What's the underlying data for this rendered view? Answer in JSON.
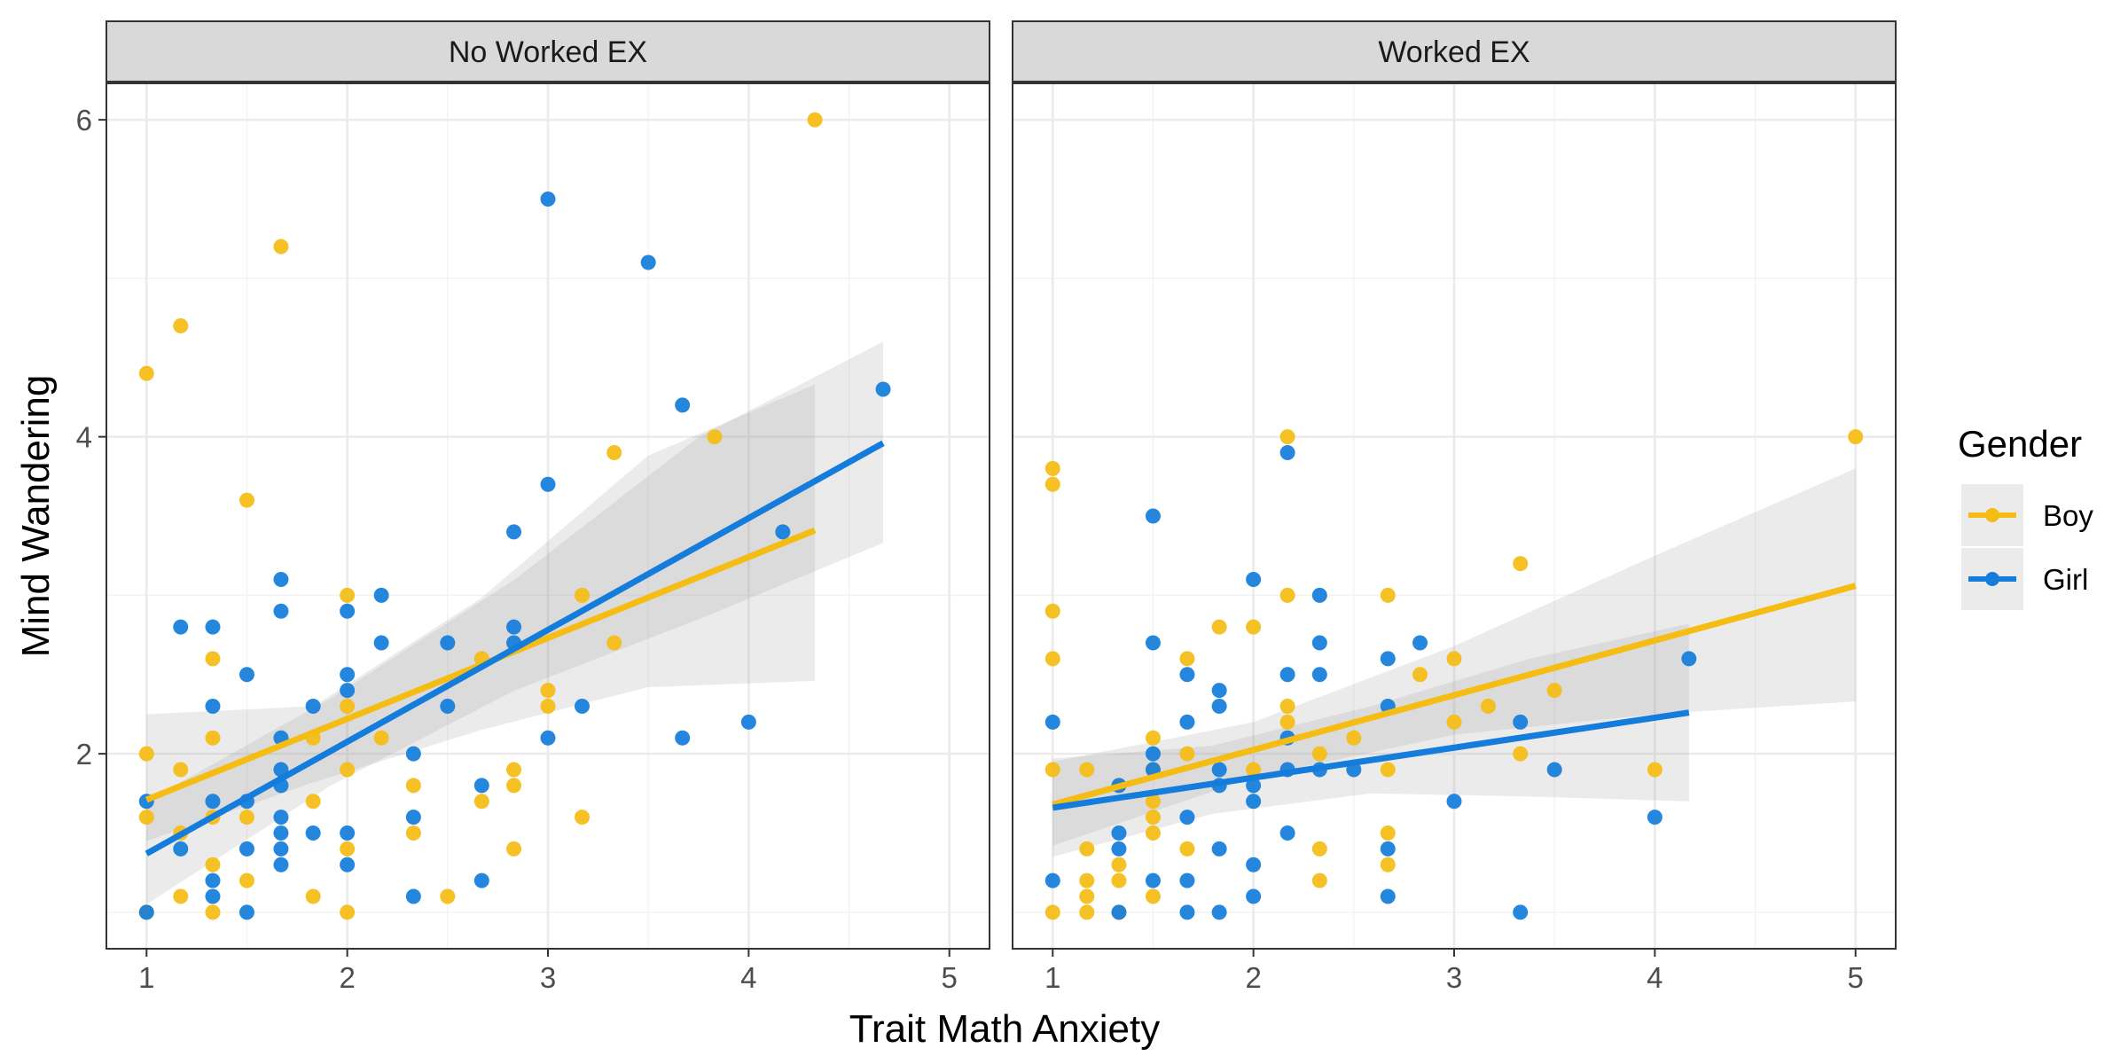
{
  "colors": {
    "boy": "#F5BC14",
    "girl": "#147DDC",
    "band": "#999999"
  },
  "chart_data": {
    "type": "scatter",
    "xlabel": "Trait Math Anxiety",
    "ylabel": "Mind Wandering",
    "xlim": [
      0.8,
      5.2
    ],
    "ylim": [
      0.77,
      6.23
    ],
    "x_ticks": [
      1,
      2,
      3,
      4,
      5
    ],
    "y_ticks": [
      2,
      4,
      6
    ],
    "grid": true,
    "legend": {
      "title": "Gender",
      "placement": "right",
      "entries": [
        {
          "label": "Boy",
          "series": "boy"
        },
        {
          "label": "Girl",
          "series": "girl"
        }
      ]
    },
    "panels": [
      {
        "strip": "No Worked EX",
        "points": {
          "boy": [
            [
              1,
              4.4
            ],
            [
              1,
              2.0
            ],
            [
              1,
              1.6
            ],
            [
              1,
              1.0
            ],
            [
              1.17,
              4.7
            ],
            [
              1.17,
              1.9
            ],
            [
              1.17,
              1.5
            ],
            [
              1.17,
              1.1
            ],
            [
              1.33,
              2.6
            ],
            [
              1.33,
              2.1
            ],
            [
              1.33,
              1.6
            ],
            [
              1.33,
              1.3
            ],
            [
              1.33,
              1.0
            ],
            [
              1.5,
              3.6
            ],
            [
              1.5,
              1.6
            ],
            [
              1.5,
              1.2
            ],
            [
              1.67,
              5.2
            ],
            [
              1.83,
              2.1
            ],
            [
              1.83,
              1.7
            ],
            [
              1.83,
              1.1
            ],
            [
              2,
              3.0
            ],
            [
              2,
              2.3
            ],
            [
              2,
              1.9
            ],
            [
              2,
              1.4
            ],
            [
              2,
              1.0
            ],
            [
              2.17,
              2.1
            ],
            [
              2.33,
              1.8
            ],
            [
              2.33,
              1.5
            ],
            [
              2.5,
              1.1
            ],
            [
              2.67,
              2.6
            ],
            [
              2.67,
              1.7
            ],
            [
              2.83,
              1.9
            ],
            [
              2.83,
              1.8
            ],
            [
              2.83,
              1.4
            ],
            [
              3,
              2.4
            ],
            [
              3,
              2.3
            ],
            [
              3.17,
              3.0
            ],
            [
              3.17,
              1.6
            ],
            [
              3.33,
              3.9
            ],
            [
              3.33,
              2.7
            ],
            [
              3.83,
              4.0
            ],
            [
              4.33,
              6.0
            ]
          ],
          "girl": [
            [
              1,
              1.7
            ],
            [
              1,
              1.0
            ],
            [
              1.17,
              2.8
            ],
            [
              1.17,
              1.4
            ],
            [
              1.33,
              2.8
            ],
            [
              1.33,
              2.3
            ],
            [
              1.33,
              1.7
            ],
            [
              1.33,
              1.2
            ],
            [
              1.33,
              1.1
            ],
            [
              1.5,
              2.5
            ],
            [
              1.5,
              1.7
            ],
            [
              1.5,
              1.4
            ],
            [
              1.5,
              1.0
            ],
            [
              1.67,
              3.1
            ],
            [
              1.67,
              2.9
            ],
            [
              1.67,
              2.1
            ],
            [
              1.67,
              1.9
            ],
            [
              1.67,
              1.8
            ],
            [
              1.67,
              1.6
            ],
            [
              1.67,
              1.5
            ],
            [
              1.67,
              1.4
            ],
            [
              1.67,
              1.3
            ],
            [
              1.83,
              2.3
            ],
            [
              1.83,
              1.5
            ],
            [
              2,
              2.9
            ],
            [
              2,
              2.5
            ],
            [
              2,
              2.4
            ],
            [
              2,
              1.5
            ],
            [
              2,
              1.3
            ],
            [
              2.17,
              3.0
            ],
            [
              2.17,
              2.7
            ],
            [
              2.33,
              2.0
            ],
            [
              2.33,
              1.6
            ],
            [
              2.33,
              1.1
            ],
            [
              2.5,
              2.7
            ],
            [
              2.5,
              2.3
            ],
            [
              2.67,
              1.8
            ],
            [
              2.67,
              1.2
            ],
            [
              2.83,
              3.4
            ],
            [
              2.83,
              2.8
            ],
            [
              2.83,
              2.7
            ],
            [
              3,
              5.5
            ],
            [
              3,
              3.7
            ],
            [
              3,
              2.1
            ],
            [
              3.17,
              2.3
            ],
            [
              3.5,
              5.1
            ],
            [
              3.67,
              4.2
            ],
            [
              3.67,
              2.1
            ],
            [
              4,
              2.2
            ],
            [
              4.17,
              3.4
            ],
            [
              4.67,
              4.3
            ]
          ]
        },
        "fits": {
          "boy": {
            "x": [
              1,
              4.33
            ],
            "y": [
              1.71,
              3.41
            ],
            "band_low": [
              1.45,
              1.82,
              2.15,
              2.42,
              2.46
            ],
            "band_high": [
              2.25,
              2.3,
              2.98,
              3.88,
              4.33
            ]
          },
          "girl": {
            "x": [
              1,
              4.67
            ],
            "y": [
              1.37,
              3.96
            ],
            "band_low": [
              1.05,
              1.8,
              2.4,
              2.85,
              3.33
            ],
            "band_high": [
              1.7,
              2.35,
              3.1,
              4.0,
              4.6
            ]
          }
        }
      },
      {
        "strip": "Worked EX",
        "points": {
          "boy": [
            [
              1,
              3.8
            ],
            [
              1,
              3.7
            ],
            [
              1,
              2.9
            ],
            [
              1,
              2.6
            ],
            [
              1,
              1.9
            ],
            [
              1,
              1.0
            ],
            [
              1.17,
              1.9
            ],
            [
              1.17,
              1.4
            ],
            [
              1.17,
              1.2
            ],
            [
              1.17,
              1.1
            ],
            [
              1.17,
              1.0
            ],
            [
              1.33,
              1.8
            ],
            [
              1.33,
              1.3
            ],
            [
              1.33,
              1.2
            ],
            [
              1.33,
              1.0
            ],
            [
              1.5,
              2.1
            ],
            [
              1.5,
              1.9
            ],
            [
              1.5,
              1.7
            ],
            [
              1.5,
              1.6
            ],
            [
              1.5,
              1.5
            ],
            [
              1.5,
              1.1
            ],
            [
              1.67,
              2.6
            ],
            [
              1.67,
              2.0
            ],
            [
              1.67,
              1.4
            ],
            [
              1.83,
              2.8
            ],
            [
              2,
              2.8
            ],
            [
              2,
              1.9
            ],
            [
              2.17,
              4.0
            ],
            [
              2.17,
              3.0
            ],
            [
              2.17,
              2.3
            ],
            [
              2.17,
              2.2
            ],
            [
              2.33,
              2.0
            ],
            [
              2.33,
              1.4
            ],
            [
              2.33,
              1.2
            ],
            [
              2.5,
              2.1
            ],
            [
              2.67,
              3.0
            ],
            [
              2.67,
              1.9
            ],
            [
              2.67,
              1.5
            ],
            [
              2.67,
              1.3
            ],
            [
              2.83,
              2.5
            ],
            [
              3,
              2.6
            ],
            [
              3,
              2.2
            ],
            [
              3.17,
              2.3
            ],
            [
              3.33,
              3.2
            ],
            [
              3.33,
              2.0
            ],
            [
              3.5,
              2.4
            ],
            [
              4,
              1.9
            ],
            [
              5,
              4.0
            ]
          ],
          "girl": [
            [
              1,
              2.2
            ],
            [
              1,
              1.2
            ],
            [
              1.33,
              1.8
            ],
            [
              1.33,
              1.5
            ],
            [
              1.33,
              1.4
            ],
            [
              1.33,
              1.0
            ],
            [
              1.5,
              3.5
            ],
            [
              1.5,
              2.7
            ],
            [
              1.5,
              2.0
            ],
            [
              1.5,
              1.9
            ],
            [
              1.5,
              1.2
            ],
            [
              1.67,
              2.5
            ],
            [
              1.67,
              2.2
            ],
            [
              1.67,
              1.6
            ],
            [
              1.67,
              1.2
            ],
            [
              1.67,
              1.0
            ],
            [
              1.83,
              2.4
            ],
            [
              1.83,
              2.3
            ],
            [
              1.83,
              1.9
            ],
            [
              1.83,
              1.8
            ],
            [
              1.83,
              1.4
            ],
            [
              1.83,
              1.0
            ],
            [
              2,
              3.1
            ],
            [
              2,
              1.8
            ],
            [
              2,
              1.7
            ],
            [
              2,
              1.3
            ],
            [
              2,
              1.1
            ],
            [
              2.17,
              3.9
            ],
            [
              2.17,
              2.5
            ],
            [
              2.17,
              2.1
            ],
            [
              2.17,
              1.9
            ],
            [
              2.17,
              1.5
            ],
            [
              2.33,
              3.0
            ],
            [
              2.33,
              2.7
            ],
            [
              2.33,
              2.5
            ],
            [
              2.33,
              1.9
            ],
            [
              2.5,
              1.9
            ],
            [
              2.67,
              2.6
            ],
            [
              2.67,
              2.3
            ],
            [
              2.67,
              1.4
            ],
            [
              2.67,
              1.1
            ],
            [
              2.83,
              2.7
            ],
            [
              3,
              1.7
            ],
            [
              3.33,
              2.2
            ],
            [
              3.33,
              1.0
            ],
            [
              3.5,
              1.9
            ],
            [
              4,
              1.6
            ],
            [
              4.17,
              2.6
            ]
          ]
        },
        "fits": {
          "boy": {
            "x": [
              1,
              5
            ],
            "y": [
              1.68,
              3.06
            ],
            "band_low": [
              1.42,
              1.85,
              2.12,
              2.25,
              2.33
            ],
            "band_high": [
              1.95,
              2.2,
              2.68,
              3.25,
              3.8
            ]
          },
          "girl": {
            "x": [
              1,
              4.17
            ],
            "y": [
              1.66,
              2.26
            ],
            "band_low": [
              1.35,
              1.62,
              1.75,
              1.73,
              1.7
            ],
            "band_high": [
              1.97,
              2.05,
              2.3,
              2.6,
              2.82
            ]
          }
        }
      }
    ]
  }
}
